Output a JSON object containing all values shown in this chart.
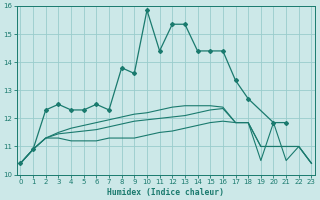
{
  "xlabel": "Humidex (Indice chaleur)",
  "bg_color": "#cce8e8",
  "grid_color": "#99cccc",
  "line_color": "#1a7a6e",
  "xmin": 0,
  "xmax": 23,
  "ymin": 10,
  "ymax": 16,
  "x": [
    0,
    1,
    2,
    3,
    4,
    5,
    6,
    7,
    8,
    9,
    10,
    11,
    12,
    13,
    14,
    15,
    16,
    17,
    18,
    19,
    20,
    21,
    22,
    23
  ],
  "line1": [
    10.4,
    10.9,
    12.3,
    12.5,
    12.3,
    12.3,
    12.5,
    12.3,
    13.8,
    13.6,
    15.85,
    14.4,
    15.35,
    15.35,
    14.4,
    14.4,
    14.4,
    13.35,
    12.7,
    null,
    11.85,
    11.85,
    null,
    null
  ],
  "line2": [
    10.4,
    10.9,
    11.3,
    11.3,
    11.2,
    11.2,
    11.2,
    11.3,
    11.3,
    11.3,
    11.4,
    11.5,
    11.55,
    11.65,
    11.75,
    11.85,
    11.9,
    11.85,
    11.85,
    11.0,
    11.0,
    11.0,
    11.0,
    10.4
  ],
  "line3": [
    10.4,
    10.9,
    11.3,
    11.45,
    11.5,
    11.55,
    11.6,
    11.7,
    11.8,
    11.9,
    11.95,
    12.0,
    12.05,
    12.1,
    12.2,
    12.3,
    12.35,
    11.85,
    11.85,
    11.0,
    11.0,
    11.0,
    11.0,
    10.4
  ],
  "line4_x": [
    0,
    1,
    2,
    3,
    4,
    5,
    6,
    7,
    8,
    9,
    10,
    11,
    12,
    13,
    14,
    15,
    16,
    17,
    18,
    19,
    20,
    21,
    22,
    23
  ],
  "line4": [
    10.4,
    10.9,
    11.3,
    11.5,
    11.65,
    11.75,
    11.85,
    11.95,
    12.05,
    12.15,
    12.2,
    12.3,
    12.4,
    12.45,
    12.45,
    12.45,
    12.4,
    11.85,
    11.85,
    10.5,
    11.85,
    10.5,
    11.0,
    10.4
  ]
}
